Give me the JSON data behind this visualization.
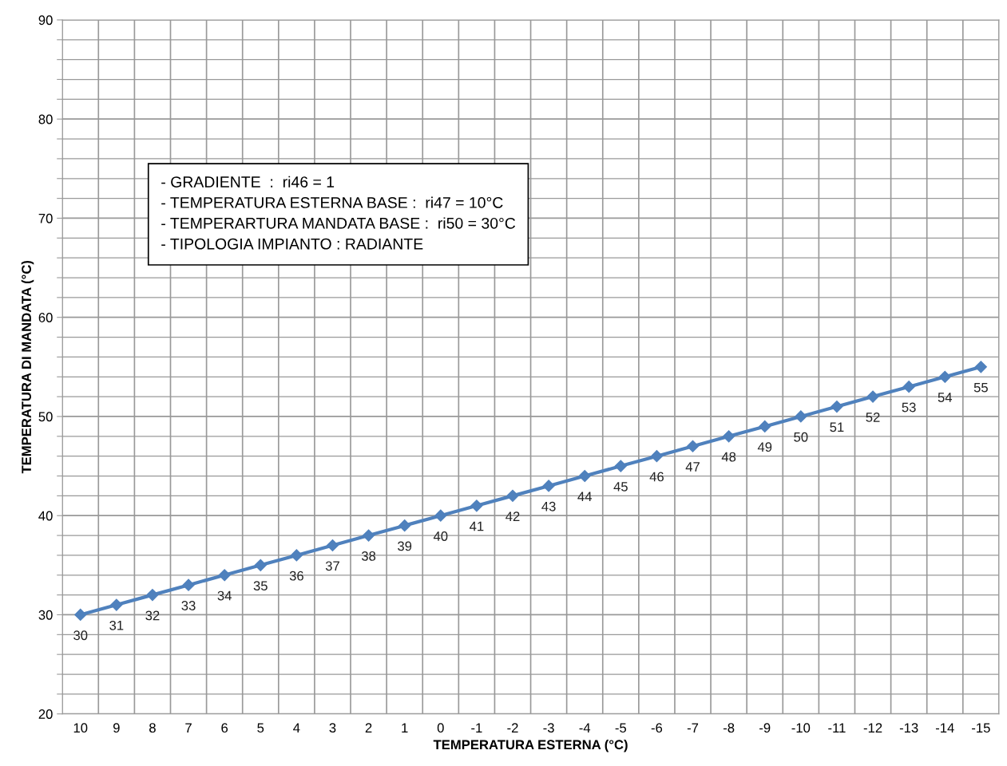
{
  "chart_data": {
    "type": "line",
    "xlabel": "TEMPERATURA ESTERNA (°C)",
    "ylabel": "TEMPERATURA DI MANDATA (°C)",
    "categories": [
      "10",
      "9",
      "8",
      "7",
      "6",
      "5",
      "4",
      "3",
      "2",
      "1",
      "0",
      "-1",
      "-2",
      "-3",
      "-4",
      "-5",
      "-6",
      "-7",
      "-8",
      "-9",
      "-10",
      "-11",
      "-12",
      "-13",
      "-14",
      "-15"
    ],
    "series": [
      {
        "color": "#4f81bd",
        "values": [
          30,
          31,
          32,
          33,
          34,
          35,
          36,
          37,
          38,
          39,
          40,
          41,
          42,
          43,
          44,
          45,
          46,
          47,
          48,
          49,
          50,
          51,
          52,
          53,
          54,
          55
        ]
      }
    ],
    "ylim": [
      20,
      90
    ],
    "yticks": [
      20,
      {
        "value": 22,
        "label": null
      },
      {
        "value": 24,
        "label": null
      },
      {
        "value": 26,
        "label": null
      },
      {
        "value": 28,
        "label": null
      },
      30,
      {
        "value": 32,
        "label": null
      },
      {
        "value": 34,
        "label": null
      },
      {
        "value": 36,
        "label": null
      },
      {
        "value": 38,
        "label": null
      },
      40,
      {
        "value": 42,
        "label": null
      },
      {
        "value": 44,
        "label": null
      },
      {
        "value": 46,
        "label": null
      },
      {
        "value": 48,
        "label": null
      },
      50,
      {
        "value": 52,
        "label": null
      },
      {
        "value": 54,
        "label": null
      },
      {
        "value": 56,
        "label": null
      },
      {
        "value": 58,
        "label": null
      },
      60,
      {
        "value": 62,
        "label": null
      },
      {
        "value": 64,
        "label": null
      },
      {
        "value": 66,
        "label": null
      },
      {
        "value": 68,
        "label": null
      },
      70,
      {
        "value": 72,
        "label": null
      },
      {
        "value": 74,
        "label": null
      },
      {
        "value": 76,
        "label": null
      },
      {
        "value": 78,
        "label": null
      },
      80,
      {
        "value": 82,
        "label": null
      },
      {
        "value": 84,
        "label": null
      },
      {
        "value": 86,
        "label": null
      },
      {
        "value": 88,
        "label": null
      },
      90
    ],
    "grid": true,
    "marker": "diamond",
    "line_style": "solid",
    "data_labels": true,
    "legend": false,
    "annotations": [
      "- GRADIENTE  :  ri46 = 1\n- TEMPERATURA ESTERNA BASE :  ri47 = 10°C\n- TEMPERARTURA MANDATA BASE :  ri50 = 30°C\n- TIPOLOGIA IMPIANTO : RADIANTE"
    ]
  }
}
